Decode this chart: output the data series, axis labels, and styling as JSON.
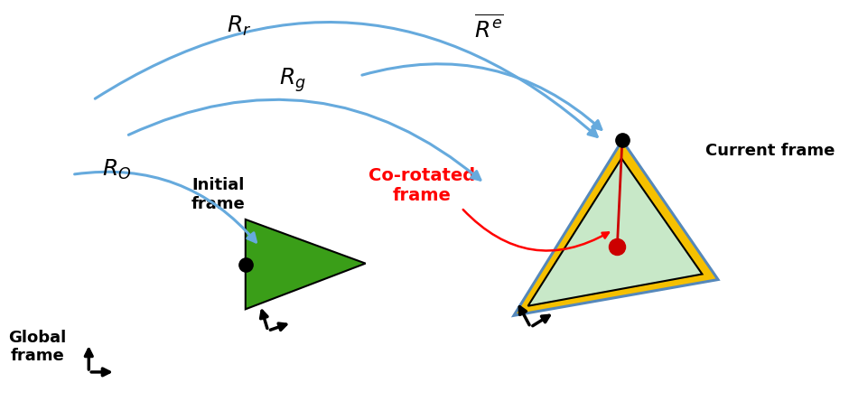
{
  "bg_color": "#ffffff",
  "global_frame_label": "Global\nframe",
  "initial_frame_label": "Initial\nframe",
  "current_frame_label": "Current frame",
  "corotated_frame_label": "Co-rotated\nframe",
  "R_r_label": "$\\mathit{R_r}$",
  "R_g_label": "$\\mathit{R_g}$",
  "R_0_label": "$\\mathit{R_O}$",
  "R_e_label": "$\\overline{R^e}$",
  "arrow_color": "#66aadd",
  "green_fill": "#3a9e18",
  "light_green_fill": "#c8e8c8",
  "yellow_fill": "#f5c000",
  "yellow_edge": "#5588bb",
  "black_dot_color": "#000000",
  "red_dot_color": "#cc0000",
  "red_line_color": "#cc0000"
}
